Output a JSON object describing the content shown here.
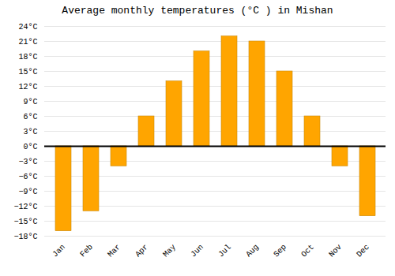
{
  "chart_data": {
    "type": "bar",
    "title": "Average monthly temperatures (°C ) in Mishan",
    "categories": [
      "Jan",
      "Feb",
      "Mar",
      "Apr",
      "May",
      "Jun",
      "Jul",
      "Aug",
      "Sep",
      "Oct",
      "Nov",
      "Dec"
    ],
    "values": [
      -17,
      -13,
      -4,
      6,
      13,
      19,
      22,
      21,
      15,
      6,
      -4,
      -14
    ],
    "color": "#FFA500",
    "ylim": [
      -18,
      24
    ],
    "yticks": [
      {
        "value": -18,
        "label": "−18°C"
      },
      {
        "value": -15,
        "label": "−15°C"
      },
      {
        "value": -12,
        "label": "−12°C"
      },
      {
        "value": -9,
        "label": "−9°C"
      },
      {
        "value": -6,
        "label": "−6°C"
      },
      {
        "value": -3,
        "label": "−3°C"
      },
      {
        "value": 0,
        "label": "0°C"
      },
      {
        "value": 3,
        "label": "3°C"
      },
      {
        "value": 6,
        "label": "6°C"
      },
      {
        "value": 9,
        "label": "9°C"
      },
      {
        "value": 12,
        "label": "12°C"
      },
      {
        "value": 15,
        "label": "15°C"
      },
      {
        "value": 18,
        "label": "18°C"
      },
      {
        "value": 21,
        "label": "21°C"
      },
      {
        "value": 24,
        "label": "24°C"
      }
    ],
    "grid": true
  }
}
